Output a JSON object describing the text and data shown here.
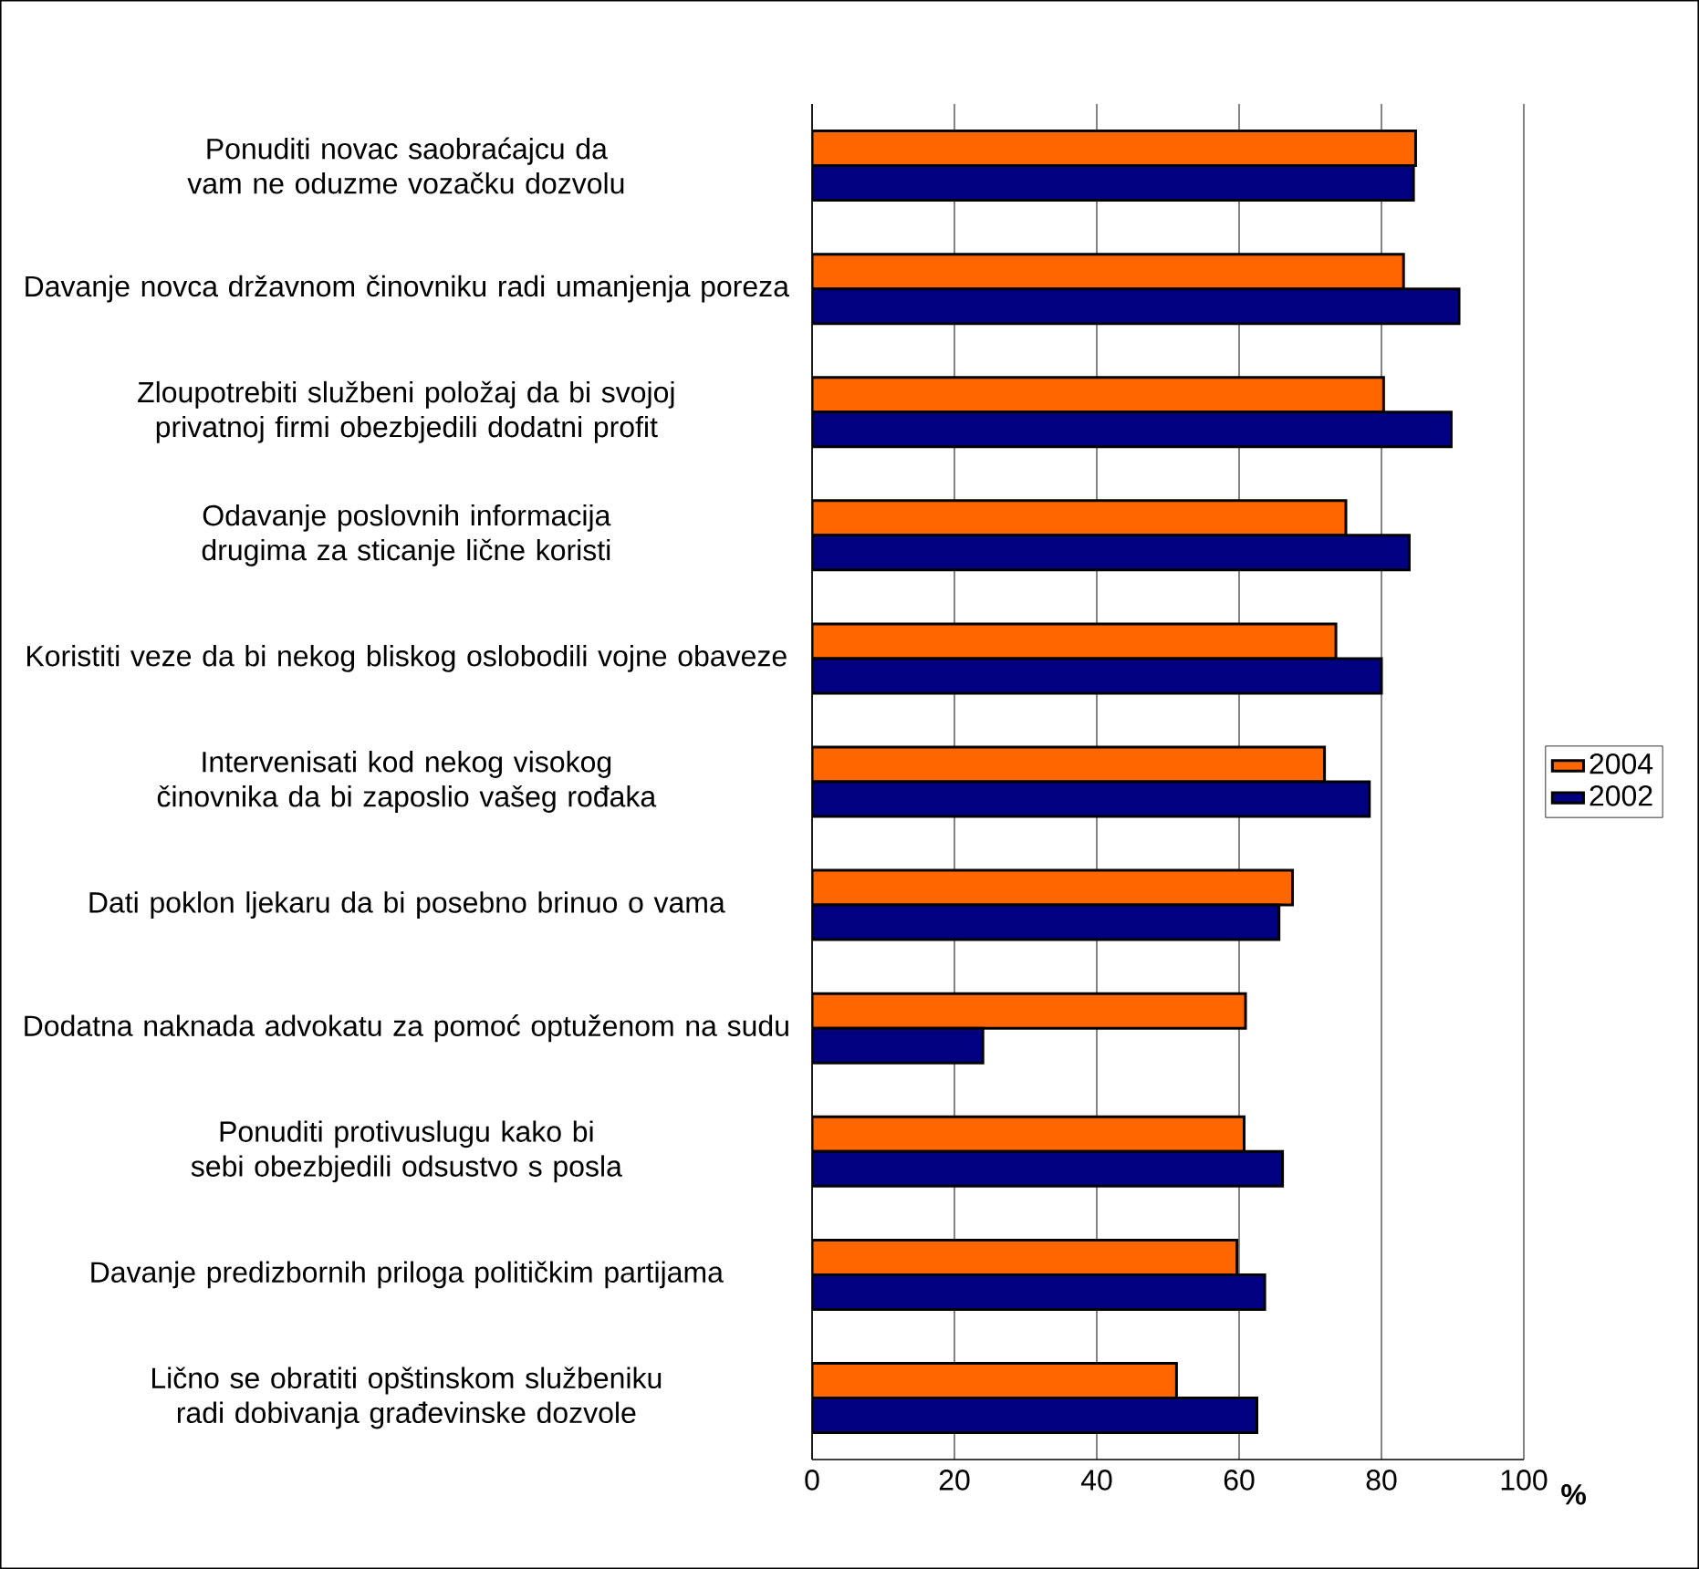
{
  "chart_data": {
    "type": "bar",
    "orientation": "horizontal",
    "xlabel": "%",
    "categories": [
      "Ponuditi novac saobraćajcu da vam ne oduzme vozačku dozvolu",
      "Davanje novca državnom činovniku radi umanjenja poreza",
      "Zloupotrebiti službeni položaj da bi svojoj privatnoj firmi obezbjedili dodatni profit",
      "Odavanje poslovnih informacija drugima za sticanje lične koristi",
      "Koristiti veze da bi nekog bliskog oslobodili vojne obaveze",
      "Intervenisati kod nekog visokog činovnika da bi zaposlio vašeg rođaka",
      "Dati poklon ljekaru da bi posebno brinuo o vama",
      "Dodatna naknada advokatu za pomoć optuženom na sudu",
      "Ponuditi protivuslugu kako bi sebi obezbjedili odsustvo s posla",
      "Davanje predizbornih priloga političkim partijama",
      "Lično se obratiti opštinskom službeniku radi dobivanja građevinske dozvole"
    ],
    "series": [
      {
        "name": "2004",
        "color": "#ff6600",
        "values": [
          84.8,
          83.1,
          80.3,
          75.0,
          73.6,
          72.0,
          67.5,
          60.9,
          60.7,
          59.7,
          51.2
        ]
      },
      {
        "name": "2002",
        "color": "#000080",
        "values": [
          84.5,
          90.9,
          89.8,
          83.9,
          80.0,
          78.3,
          65.6,
          24.0,
          66.1,
          63.6,
          62.5
        ]
      }
    ],
    "xlim": [
      0,
      100
    ],
    "xticks": [
      0,
      20,
      40,
      60,
      80,
      100
    ],
    "grid": "x",
    "legend": "right"
  }
}
